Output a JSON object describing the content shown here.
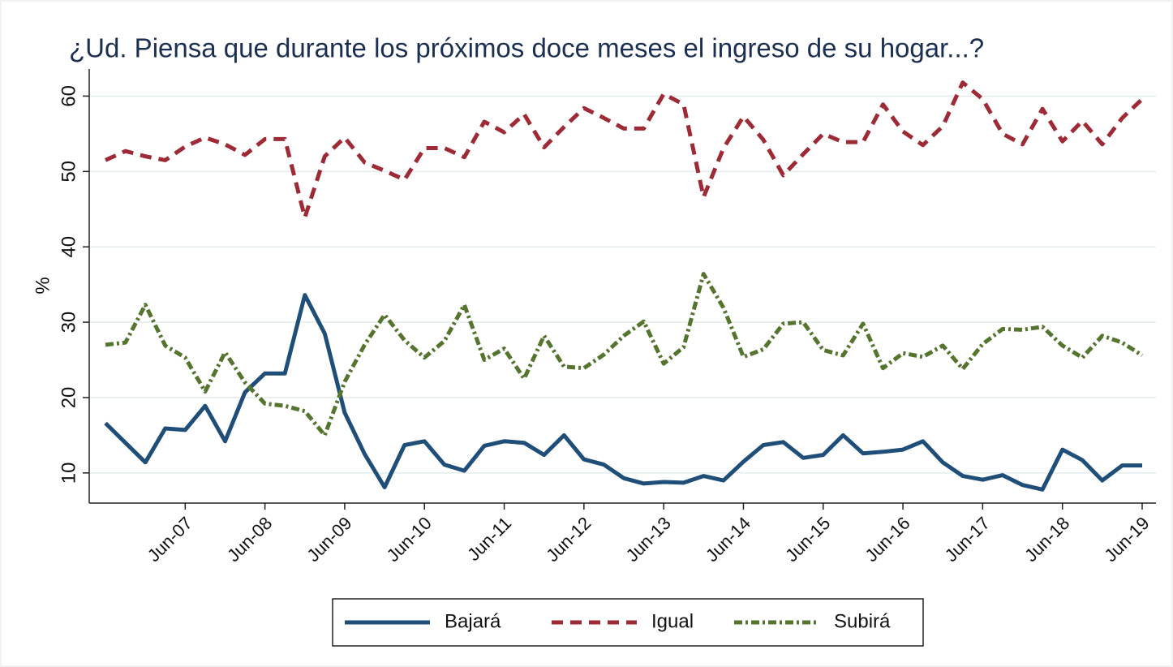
{
  "chart_data": {
    "type": "line",
    "title": "¿Ud. Piensa que durante los próximos doce meses el ingreso de su hogar...?",
    "y_label": "%",
    "categories": [
      null,
      null,
      null,
      null,
      "Jun-07",
      null,
      null,
      null,
      "Jun-08",
      null,
      null,
      null,
      "Jun-09",
      null,
      null,
      null,
      "Jun-10",
      null,
      null,
      null,
      "Jun-11",
      null,
      null,
      null,
      "Jun-12",
      null,
      null,
      null,
      "Jun-13",
      null,
      null,
      null,
      "Jun-14",
      null,
      null,
      null,
      "Jun-15",
      null,
      null,
      null,
      "Jun-16",
      null,
      null,
      null,
      "Jun-17",
      null,
      null,
      null,
      "Jun-18",
      null,
      null,
      null,
      "Jun-19"
    ],
    "series": [
      {
        "name": "Bajará",
        "color": "#1f4e79",
        "style": "solid",
        "values": [
          16.6,
          14,
          11.4,
          15.9,
          15.7,
          18.9,
          14.2,
          20.7,
          23.2,
          23.2,
          33.6,
          28.5,
          18,
          12.5,
          8.1,
          13.7,
          14.2,
          11.1,
          10.3,
          13.6,
          14.2,
          14,
          12.4,
          15,
          11.8,
          11.1,
          9.3,
          8.6,
          8.8,
          8.7,
          9.6,
          9,
          11.5,
          13.7,
          14.1,
          12,
          12.4,
          15,
          12.6,
          12.8,
          13.1,
          14.2,
          11.4,
          9.6,
          9.1,
          9.7,
          8.4,
          7.8,
          13.1,
          11.7,
          9,
          11,
          11
        ]
      },
      {
        "name": "Igual",
        "color": "#9e2a36",
        "style": "dash",
        "values": [
          51.5,
          52.7,
          52,
          51.5,
          53.3,
          54.5,
          53.6,
          52.2,
          54.3,
          54.3,
          43.9,
          52,
          54.5,
          51.2,
          50.1,
          48.9,
          53.1,
          53.1,
          51.9,
          56.6,
          55.2,
          57.6,
          53.2,
          55.9,
          58.4,
          57.1,
          55.7,
          55.7,
          60.3,
          58.9,
          46.6,
          53.1,
          57.3,
          54.2,
          49.5,
          52.3,
          55,
          53.9,
          53.9,
          58.9,
          55.3,
          53.5,
          56,
          61.8,
          59.6,
          55,
          53.6,
          58.3,
          54,
          56.7,
          53.6,
          57.1,
          59.6
        ]
      },
      {
        "name": "Subirá",
        "color": "#55752f",
        "style": "dashdot",
        "values": [
          27,
          27.3,
          32.3,
          26.9,
          25.3,
          20.8,
          26,
          22,
          19.2,
          18.9,
          18.2,
          15,
          22.1,
          27,
          31,
          27.6,
          25.3,
          27.5,
          32.3,
          25,
          26.5,
          22.5,
          28.2,
          24.1,
          23.9,
          25.7,
          28.2,
          30.1,
          24.5,
          26.7,
          36.4,
          31.9,
          25.4,
          26.4,
          29.8,
          30,
          26.3,
          25.6,
          29.8,
          23.9,
          25.9,
          25.4,
          26.9,
          23.8,
          27.1,
          29.1,
          29,
          29.4,
          26.9,
          25.3,
          28.2,
          27.3,
          25.6
        ]
      }
    ],
    "ylim": [
      6,
      63.6
    ],
    "yticks": [
      10,
      20,
      30,
      40,
      50,
      60
    ],
    "grid": true,
    "legend": "bottom"
  }
}
